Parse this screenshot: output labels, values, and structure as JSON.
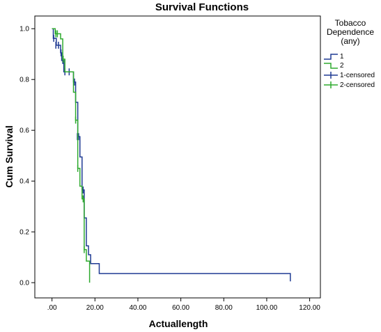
{
  "chart_data": {
    "type": "line",
    "title": "Survival Functions",
    "xlabel": "Actuallength",
    "ylabel": "Cum Survival",
    "xlim": [
      -8,
      125
    ],
    "ylim": [
      -0.06,
      1.05
    ],
    "xticks": [
      0,
      20,
      40,
      60,
      80,
      100,
      120
    ],
    "xtick_labels": [
      ".00",
      "20.00",
      "40.00",
      "60.00",
      "80.00",
      "100.00",
      "120.00"
    ],
    "yticks": [
      0.0,
      0.2,
      0.4,
      0.6,
      0.8,
      1.0
    ],
    "ytick_labels": [
      "0.0",
      "0.2",
      "0.4",
      "0.6",
      "0.8",
      "1.0"
    ],
    "grid": false,
    "legend": {
      "title": [
        "Tobacco",
        "Dependence",
        "(any)"
      ],
      "entries": [
        "1",
        "2",
        "1-censored",
        "2-censored"
      ],
      "placement": "right"
    },
    "series": [
      {
        "name": "1",
        "color": "#1f3a93",
        "steps": [
          [
            0,
            1.0
          ],
          [
            0.6,
            0.962
          ],
          [
            2.0,
            0.935
          ],
          [
            4.0,
            0.905
          ],
          [
            4.5,
            0.875
          ],
          [
            5.5,
            0.83
          ],
          [
            10.0,
            0.79
          ],
          [
            11.0,
            0.71
          ],
          [
            12.0,
            0.575
          ],
          [
            13.0,
            0.495
          ],
          [
            14.0,
            0.365
          ],
          [
            15.0,
            0.255
          ],
          [
            16.0,
            0.145
          ],
          [
            17.0,
            0.11
          ],
          [
            18.0,
            0.075
          ],
          [
            22.0,
            0.036
          ],
          [
            111.0,
            0.036
          ],
          [
            111.0,
            0.005
          ]
        ],
        "censored": [
          [
            0.8,
            0.962
          ],
          [
            1.8,
            0.935
          ],
          [
            3.0,
            0.935
          ],
          [
            4.2,
            0.905
          ],
          [
            5.0,
            0.875
          ],
          [
            6.0,
            0.83
          ],
          [
            8.0,
            0.83
          ],
          [
            10.5,
            0.79
          ],
          [
            11.8,
            0.575
          ],
          [
            12.4,
            0.575
          ],
          [
            14.5,
            0.365
          ]
        ]
      },
      {
        "name": "2",
        "color": "#2eaa2e",
        "steps": [
          [
            0,
            1.0
          ],
          [
            1.5,
            0.98
          ],
          [
            4.0,
            0.96
          ],
          [
            5.0,
            0.88
          ],
          [
            6.0,
            0.83
          ],
          [
            10.0,
            0.75
          ],
          [
            11.0,
            0.64
          ],
          [
            12.0,
            0.45
          ],
          [
            13.0,
            0.38
          ],
          [
            14.0,
            0.33
          ],
          [
            15.0,
            0.13
          ],
          [
            16.0,
            0.085
          ],
          [
            17.5,
            0.05
          ],
          [
            17.5,
            0.0
          ]
        ],
        "censored": [
          [
            1.8,
            0.98
          ],
          [
            2.5,
            0.98
          ],
          [
            5.2,
            0.88
          ],
          [
            11.0,
            0.64
          ],
          [
            12.0,
            0.45
          ],
          [
            14.5,
            0.33
          ],
          [
            15.0,
            0.13
          ]
        ]
      }
    ]
  },
  "legend_ui": {
    "title_line1": "Tobacco",
    "title_line2": "Dependence",
    "title_line3": "(any)",
    "item1": "1",
    "item2": "2",
    "item3": "1-censored",
    "item4": "2-censored"
  }
}
